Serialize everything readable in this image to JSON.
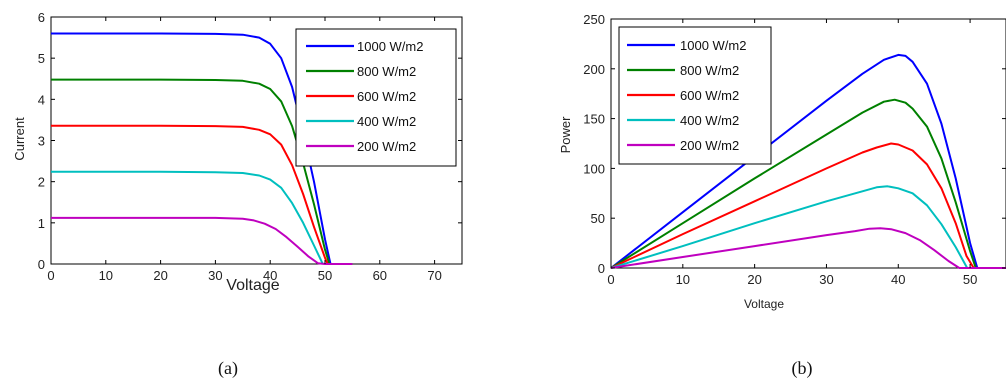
{
  "chart_data": [
    {
      "type": "line",
      "title": "",
      "xlabel": "Voltage",
      "ylabel": "Current",
      "xlim": [
        0,
        75
      ],
      "ylim": [
        0,
        6
      ],
      "xticks": [
        "0",
        "10",
        "20",
        "30",
        "40",
        "50",
        "60",
        "70"
      ],
      "yticks": [
        "0",
        "1",
        "2",
        "3",
        "4",
        "5",
        "6"
      ],
      "grid": false,
      "legend_position": "top-right",
      "caption": "(a)",
      "series": [
        {
          "name": "1000 W/m2",
          "color": "#0000ff",
          "x": [
            0,
            10,
            20,
            30,
            35,
            38,
            40,
            42,
            44,
            46,
            48,
            50,
            51
          ],
          "y": [
            5.6,
            5.6,
            5.6,
            5.59,
            5.57,
            5.5,
            5.35,
            5.0,
            4.3,
            3.2,
            2.0,
            0.6,
            0
          ]
        },
        {
          "name": "800 W/m2",
          "color": "#008000",
          "x": [
            0,
            10,
            20,
            30,
            35,
            38,
            40,
            42,
            44,
            46,
            48,
            50,
            50.8
          ],
          "y": [
            4.48,
            4.48,
            4.48,
            4.47,
            4.45,
            4.38,
            4.25,
            3.95,
            3.35,
            2.45,
            1.45,
            0.35,
            0
          ]
        },
        {
          "name": "600 W/m2",
          "color": "#ff0000",
          "x": [
            0,
            10,
            20,
            30,
            35,
            38,
            40,
            42,
            44,
            46,
            48,
            50,
            50.5
          ],
          "y": [
            3.36,
            3.36,
            3.36,
            3.35,
            3.33,
            3.26,
            3.15,
            2.9,
            2.4,
            1.7,
            0.9,
            0.15,
            0
          ]
        },
        {
          "name": "400 W/m2",
          "color": "#00bfbf",
          "x": [
            0,
            10,
            20,
            30,
            35,
            38,
            40,
            42,
            44,
            46,
            48,
            49.6
          ],
          "y": [
            2.24,
            2.24,
            2.24,
            2.23,
            2.21,
            2.15,
            2.05,
            1.85,
            1.48,
            1.0,
            0.45,
            0
          ]
        },
        {
          "name": "200 W/m2",
          "color": "#bf00bf",
          "x": [
            0,
            10,
            20,
            30,
            35,
            37,
            39,
            41,
            43,
            45,
            47,
            48.7,
            50,
            55
          ],
          "y": [
            1.12,
            1.12,
            1.12,
            1.12,
            1.1,
            1.06,
            0.98,
            0.85,
            0.65,
            0.42,
            0.18,
            0.02,
            0,
            0
          ]
        }
      ]
    },
    {
      "type": "line",
      "title": "",
      "xlabel": "Voltage",
      "ylabel": "Power",
      "xlim": [
        0,
        55
      ],
      "ylim": [
        0,
        250
      ],
      "xticks": [
        "0",
        "10",
        "20",
        "30",
        "40",
        "50"
      ],
      "yticks": [
        "0",
        "50",
        "100",
        "150",
        "200",
        "250"
      ],
      "grid": false,
      "legend_position": "top-left",
      "caption": "(b)",
      "series": [
        {
          "name": "1000 W/m2",
          "color": "#0000ff",
          "x": [
            0,
            10,
            20,
            30,
            35,
            38,
            40,
            41,
            42,
            44,
            46,
            48,
            50,
            51,
            55
          ],
          "y": [
            0,
            56,
            112,
            168,
            195,
            209,
            214,
            213,
            207,
            185,
            145,
            90,
            25,
            0,
            0
          ]
        },
        {
          "name": "800 W/m2",
          "color": "#008000",
          "x": [
            0,
            10,
            20,
            30,
            35,
            38,
            39.5,
            41,
            42,
            44,
            46,
            48,
            50,
            50.8
          ],
          "y": [
            0,
            45,
            90,
            134,
            156,
            167,
            169,
            166,
            160,
            142,
            110,
            66,
            17,
            0
          ]
        },
        {
          "name": "600 W/m2",
          "color": "#ff0000",
          "x": [
            0,
            10,
            20,
            30,
            35,
            37,
            39,
            40,
            42,
            44,
            46,
            48,
            49.5,
            50.5
          ],
          "y": [
            0,
            34,
            67,
            100,
            116,
            121,
            125,
            124,
            118,
            104,
            80,
            45,
            12,
            0
          ]
        },
        {
          "name": "400 W/m2",
          "color": "#00bfbf",
          "x": [
            0,
            10,
            20,
            30,
            35,
            37,
            38.5,
            40,
            42,
            44,
            46,
            48,
            49.6
          ],
          "y": [
            0,
            22,
            45,
            67,
            77,
            81,
            82,
            80,
            75,
            63,
            44,
            21,
            0
          ]
        },
        {
          "name": "200 W/m2",
          "color": "#bf00bf",
          "x": [
            0,
            10,
            20,
            30,
            34,
            36,
            37.5,
            39,
            41,
            43,
            45,
            47,
            48.5,
            55
          ],
          "y": [
            0,
            11,
            22,
            33,
            37,
            39.5,
            40,
            39,
            35,
            28,
            18,
            7,
            0,
            0
          ]
        }
      ]
    }
  ]
}
